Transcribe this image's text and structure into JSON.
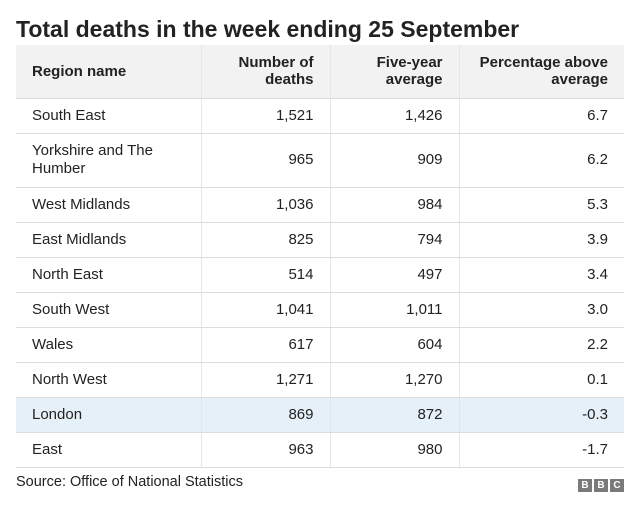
{
  "chart_data": {
    "type": "table",
    "title": "Total deaths in the week ending 25 September",
    "columns": [
      "Region name",
      "Number of deaths",
      "Five-year average",
      "Percentage above average"
    ],
    "rows": [
      {
        "region": "South East",
        "deaths": "1,521",
        "average": "1,426",
        "pct": "6.7",
        "highlight": false
      },
      {
        "region": "Yorkshire and The Humber",
        "deaths": "965",
        "average": "909",
        "pct": "6.2",
        "highlight": false
      },
      {
        "region": "West Midlands",
        "deaths": "1,036",
        "average": "984",
        "pct": "5.3",
        "highlight": false
      },
      {
        "region": "East Midlands",
        "deaths": "825",
        "average": "794",
        "pct": "3.9",
        "highlight": false
      },
      {
        "region": "North East",
        "deaths": "514",
        "average": "497",
        "pct": "3.4",
        "highlight": false
      },
      {
        "region": "South West",
        "deaths": "1,041",
        "average": "1,011",
        "pct": "3.0",
        "highlight": false
      },
      {
        "region": "Wales",
        "deaths": "617",
        "average": "604",
        "pct": "2.2",
        "highlight": false
      },
      {
        "region": "North West",
        "deaths": "1,271",
        "average": "1,270",
        "pct": "0.1",
        "highlight": false
      },
      {
        "region": "London",
        "deaths": "869",
        "average": "872",
        "pct": "-0.3",
        "highlight": true
      },
      {
        "region": "East",
        "deaths": "963",
        "average": "980",
        "pct": "-1.7",
        "highlight": false
      }
    ],
    "highlight_color": "#e6f0f8"
  },
  "source": "Source: Office of National Statistics",
  "logo_letters": [
    "B",
    "B",
    "C"
  ]
}
